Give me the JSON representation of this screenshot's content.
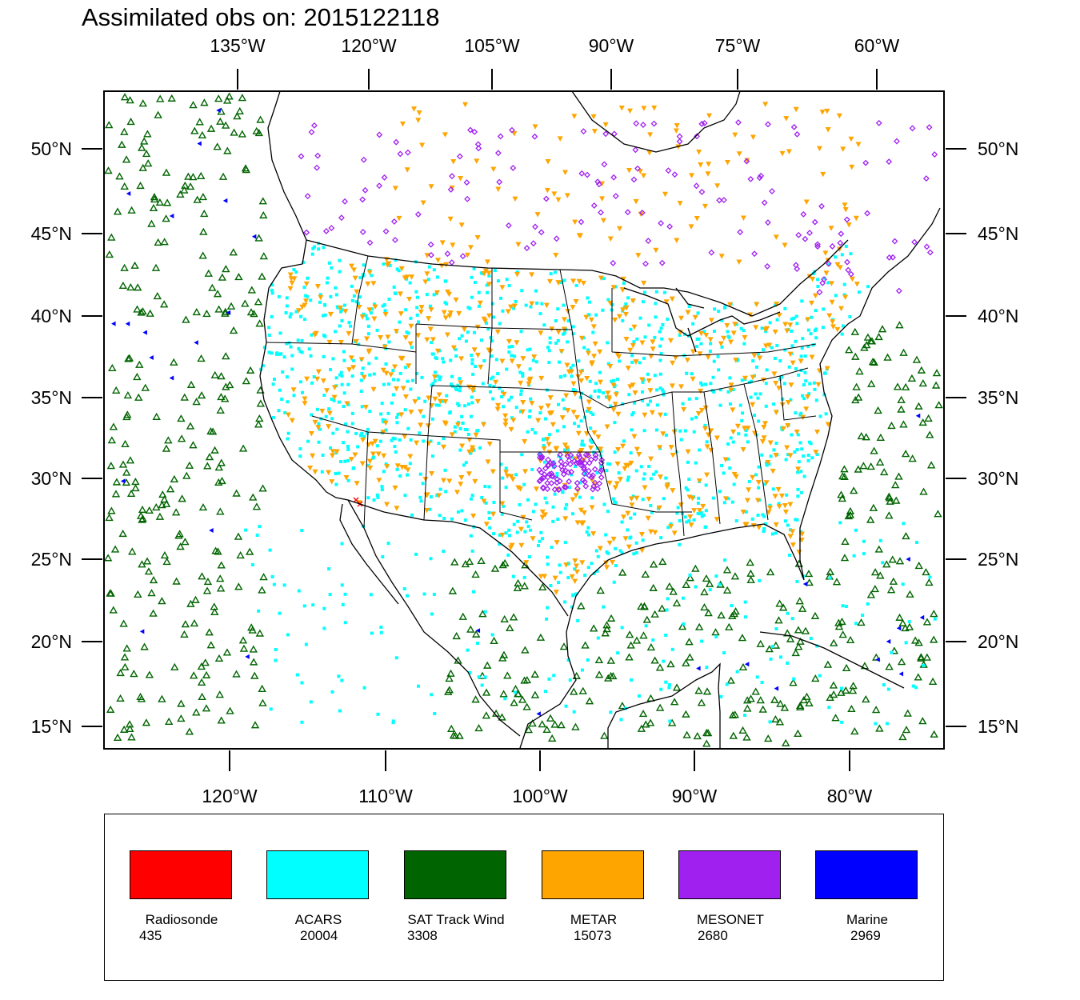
{
  "title": "Assimilated obs on: 2015122118",
  "top_axis_labels": [
    "135°W",
    "120°W",
    "105°W",
    "90°W",
    "75°W",
    "60°W"
  ],
  "bottom_axis_labels": [
    "120°W",
    "110°W",
    "100°W",
    "90°W",
    "80°W"
  ],
  "left_axis_labels": [
    "50°N",
    "45°N",
    "40°N",
    "35°N",
    "30°N",
    "25°N",
    "20°N",
    "15°N"
  ],
  "right_axis_labels": [
    "50°N",
    "45°N",
    "40°N",
    "35°N",
    "30°N",
    "25°N",
    "20°N",
    "15°N"
  ],
  "legend": [
    {
      "name": "Radiosonde",
      "count": "435",
      "color": "#ff0000",
      "marker": "x"
    },
    {
      "name": "ACARS",
      "count": "20004",
      "color": "#00ffff",
      "marker": "square"
    },
    {
      "name": "SAT Track Wind",
      "count": "3308",
      "color": "#006400",
      "marker": "triangle"
    },
    {
      "name": "METAR",
      "count": "15073",
      "color": "#ffa500",
      "marker": "inverted-triangle"
    },
    {
      "name": "MESONET",
      "count": "2680",
      "color": "#a020f0",
      "marker": "diamond"
    },
    {
      "name": "Marine",
      "count": "2969",
      "color": "#0000ff",
      "marker": "left-triangle"
    }
  ]
}
